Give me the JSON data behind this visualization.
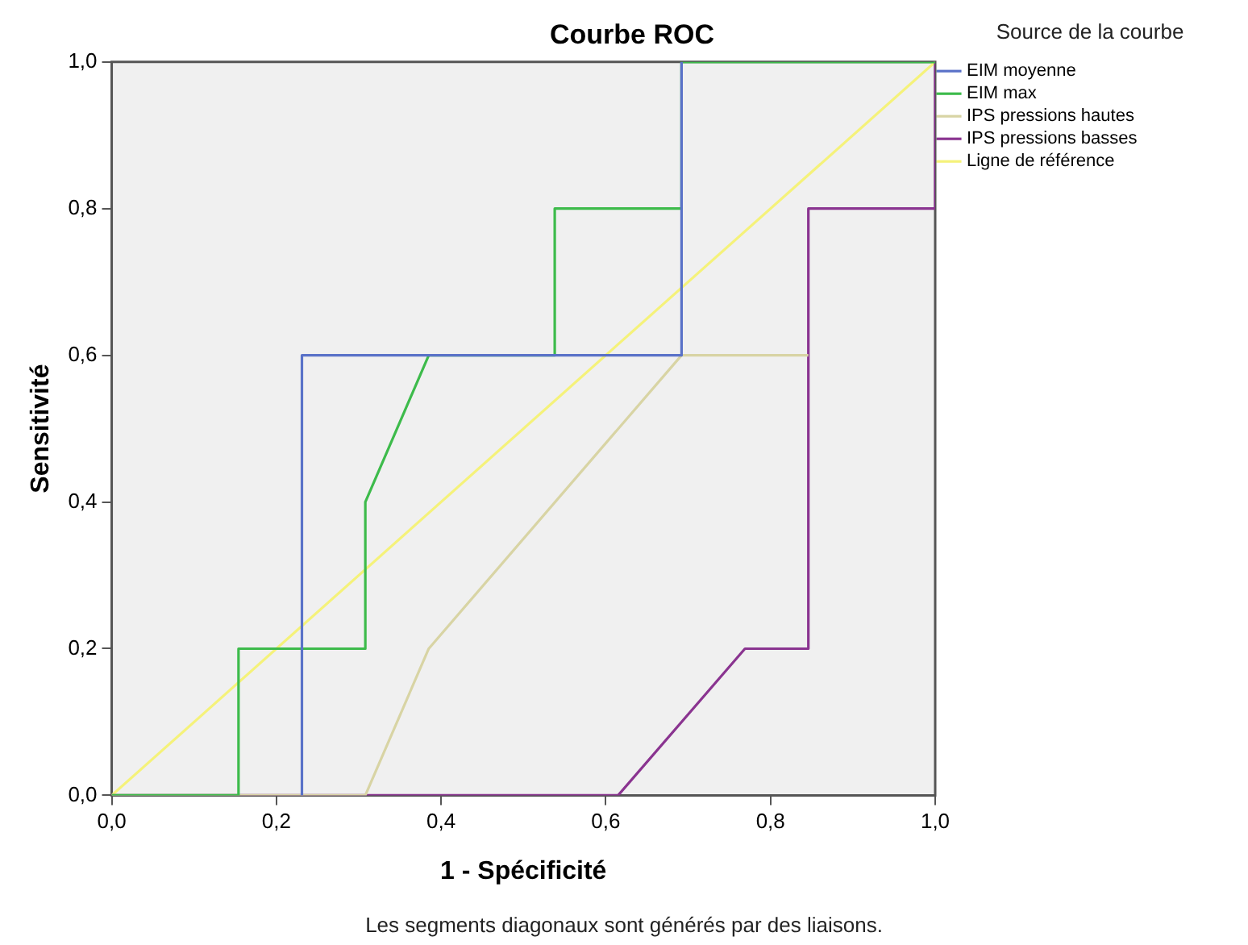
{
  "chart_data": {
    "type": "line",
    "title": "Courbe ROC",
    "xlabel": "1 - Spécificité",
    "ylabel": "Sensitivité",
    "legend_title": "Source de la courbe",
    "legend": "right",
    "annotations": [
      "Les segments diagonaux sont générés par des liaisons."
    ],
    "xlim": [
      0,
      1
    ],
    "ylim": [
      0,
      1
    ],
    "xticks": [
      {
        "value": 0,
        "label": "0,0"
      },
      {
        "value": 0.2,
        "label": "0,2"
      },
      {
        "value": 0.4,
        "label": "0,4"
      },
      {
        "value": 0.6,
        "label": "0,6"
      },
      {
        "value": 0.8,
        "label": "0,8"
      },
      {
        "value": 1,
        "label": "1,0"
      }
    ],
    "yticks": [
      {
        "value": 0,
        "label": "0,0"
      },
      {
        "value": 0.2,
        "label": "0,2"
      },
      {
        "value": 0.4,
        "label": "0,4"
      },
      {
        "value": 0.6,
        "label": "0,6"
      },
      {
        "value": 0.8,
        "label": "0,8"
      },
      {
        "value": 1,
        "label": "1,0"
      }
    ],
    "grid": false,
    "marker": "none",
    "line_style": "solid",
    "series": [
      {
        "name": "EIM moyenne",
        "color": "#5a72c8",
        "x": [
          0.231,
          0.231,
          0.692,
          0.692
        ],
        "values": [
          0,
          0.6,
          0.6,
          1
        ]
      },
      {
        "name": "EIM max",
        "color": "#3dbb4b",
        "x": [
          0,
          0.154,
          0.154,
          0.308,
          0.308,
          0.385,
          0.538,
          0.538,
          0.692,
          0.692,
          1
        ],
        "values": [
          0,
          0,
          0.2,
          0.2,
          0.4,
          0.6,
          0.6,
          0.8,
          0.8,
          1,
          1
        ]
      },
      {
        "name": "IPS pressions hautes",
        "color": "#d8d4a4",
        "x": [
          0,
          0.308,
          0.385,
          0.692,
          0.846
        ],
        "values": [
          0,
          0,
          0.2,
          0.6,
          0.6
        ]
      },
      {
        "name": "IPS pressions basses",
        "color": "#8a3490",
        "x": [
          0,
          0.615,
          0.769,
          0.846,
          0.846,
          1,
          1
        ],
        "values": [
          0,
          0,
          0.2,
          0.2,
          0.8,
          0.8,
          1
        ]
      },
      {
        "name": "Ligne de référence",
        "color": "#f5f27a",
        "x": [
          0,
          1
        ],
        "values": [
          0,
          1
        ]
      }
    ]
  }
}
